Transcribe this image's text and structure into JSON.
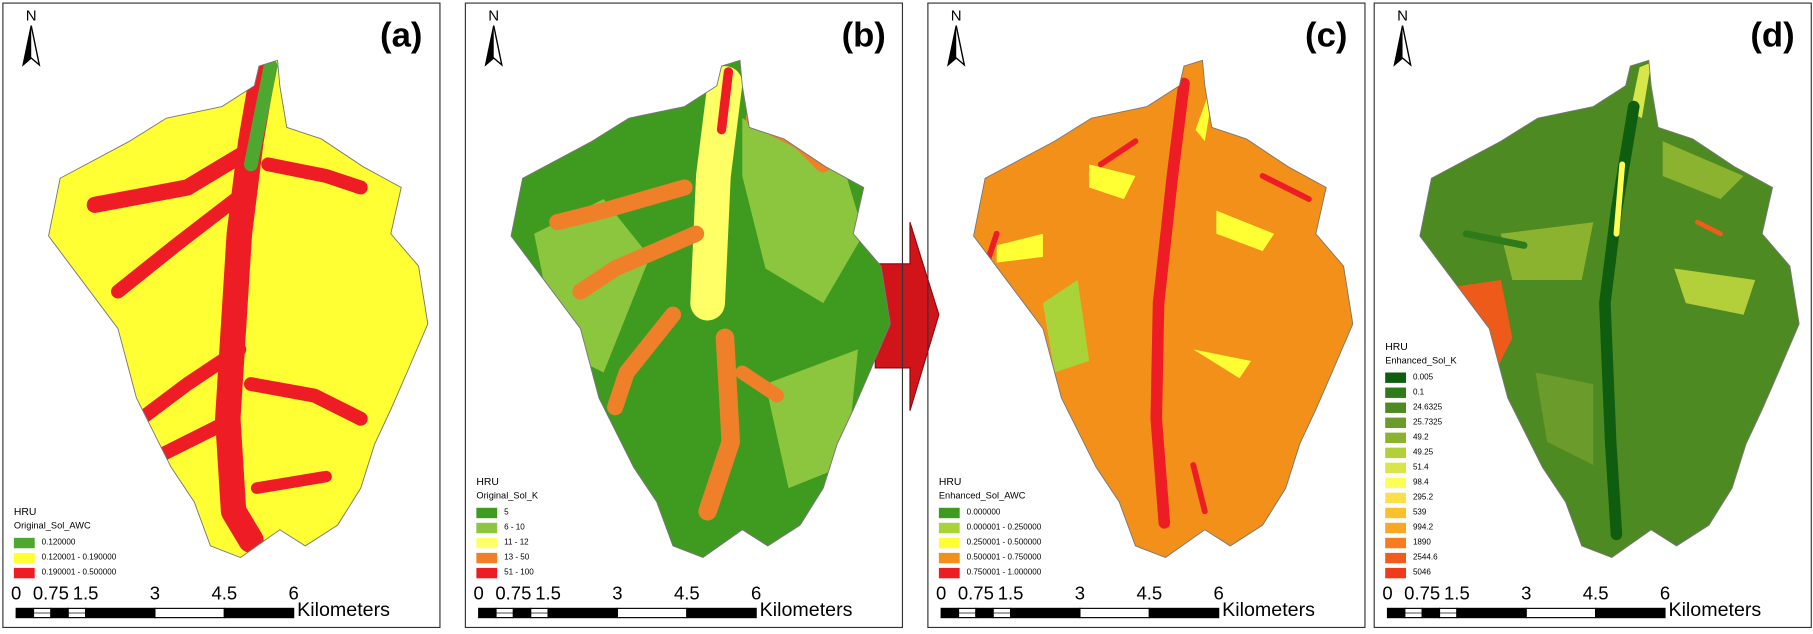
{
  "north": "N",
  "scale_bar": {
    "labels": [
      "0",
      "0.75",
      "1.5",
      "3",
      "4.5",
      "6"
    ],
    "unit": "Kilometers"
  },
  "panels": [
    {
      "label": "(a)",
      "legend": {
        "title": "HRU",
        "field": "Original_Sol_AWC",
        "items": [
          {
            "label": "0.120000",
            "color": "#4ea72e"
          },
          {
            "label": "0.120001 - 0.190000",
            "color": "#ffff33"
          },
          {
            "label": "0.190001 - 0.500000",
            "color": "#ee1c24"
          }
        ]
      }
    },
    {
      "label": "(b)",
      "legend": {
        "title": "HRU",
        "field": "Original_Sol_K",
        "items": [
          {
            "label": "5",
            "color": "#3f9b1f"
          },
          {
            "label": "6 - 10",
            "color": "#8cc63f"
          },
          {
            "label": "11 - 12",
            "color": "#ffff66"
          },
          {
            "label": "13 - 50",
            "color": "#f07f2a"
          },
          {
            "label": "51 - 100",
            "color": "#ee1c24"
          }
        ]
      }
    },
    {
      "label": "(c)",
      "legend": {
        "title": "HRU",
        "field": "Enhanced_Sol_AWC",
        "items": [
          {
            "label": "0.000000",
            "color": "#3f9b1f"
          },
          {
            "label": "0.000001 - 0.250000",
            "color": "#a8d43a"
          },
          {
            "label": "0.250001 - 0.500000",
            "color": "#ffff33"
          },
          {
            "label": "0.500001 - 0.750000",
            "color": "#f39019"
          },
          {
            "label": "0.750001 - 1.000000",
            "color": "#ee1c24"
          }
        ]
      }
    },
    {
      "label": "(d)",
      "legend": {
        "title": "HRU",
        "field": "Enhanced_Sol_K",
        "items": [
          {
            "label": "0.005",
            "color": "#0f5e0f"
          },
          {
            "label": "0.1",
            "color": "#2f7a1a"
          },
          {
            "label": "24.6325",
            "color": "#4d8a22"
          },
          {
            "label": "25.7325",
            "color": "#6b9b2a"
          },
          {
            "label": "49.2",
            "color": "#8cb32f"
          },
          {
            "label": "49.25",
            "color": "#b3cf3a"
          },
          {
            "label": "51.4",
            "color": "#d8e64a"
          },
          {
            "label": "98.4",
            "color": "#ffff55"
          },
          {
            "label": "295.2",
            "color": "#fde047"
          },
          {
            "label": "539",
            "color": "#fbc02d"
          },
          {
            "label": "994.2",
            "color": "#f9a825"
          },
          {
            "label": "1890",
            "color": "#f57c1f"
          },
          {
            "label": "2544.6",
            "color": "#f25c1a"
          },
          {
            "label": "5046",
            "color": "#ee3b1a"
          }
        ]
      }
    }
  ]
}
